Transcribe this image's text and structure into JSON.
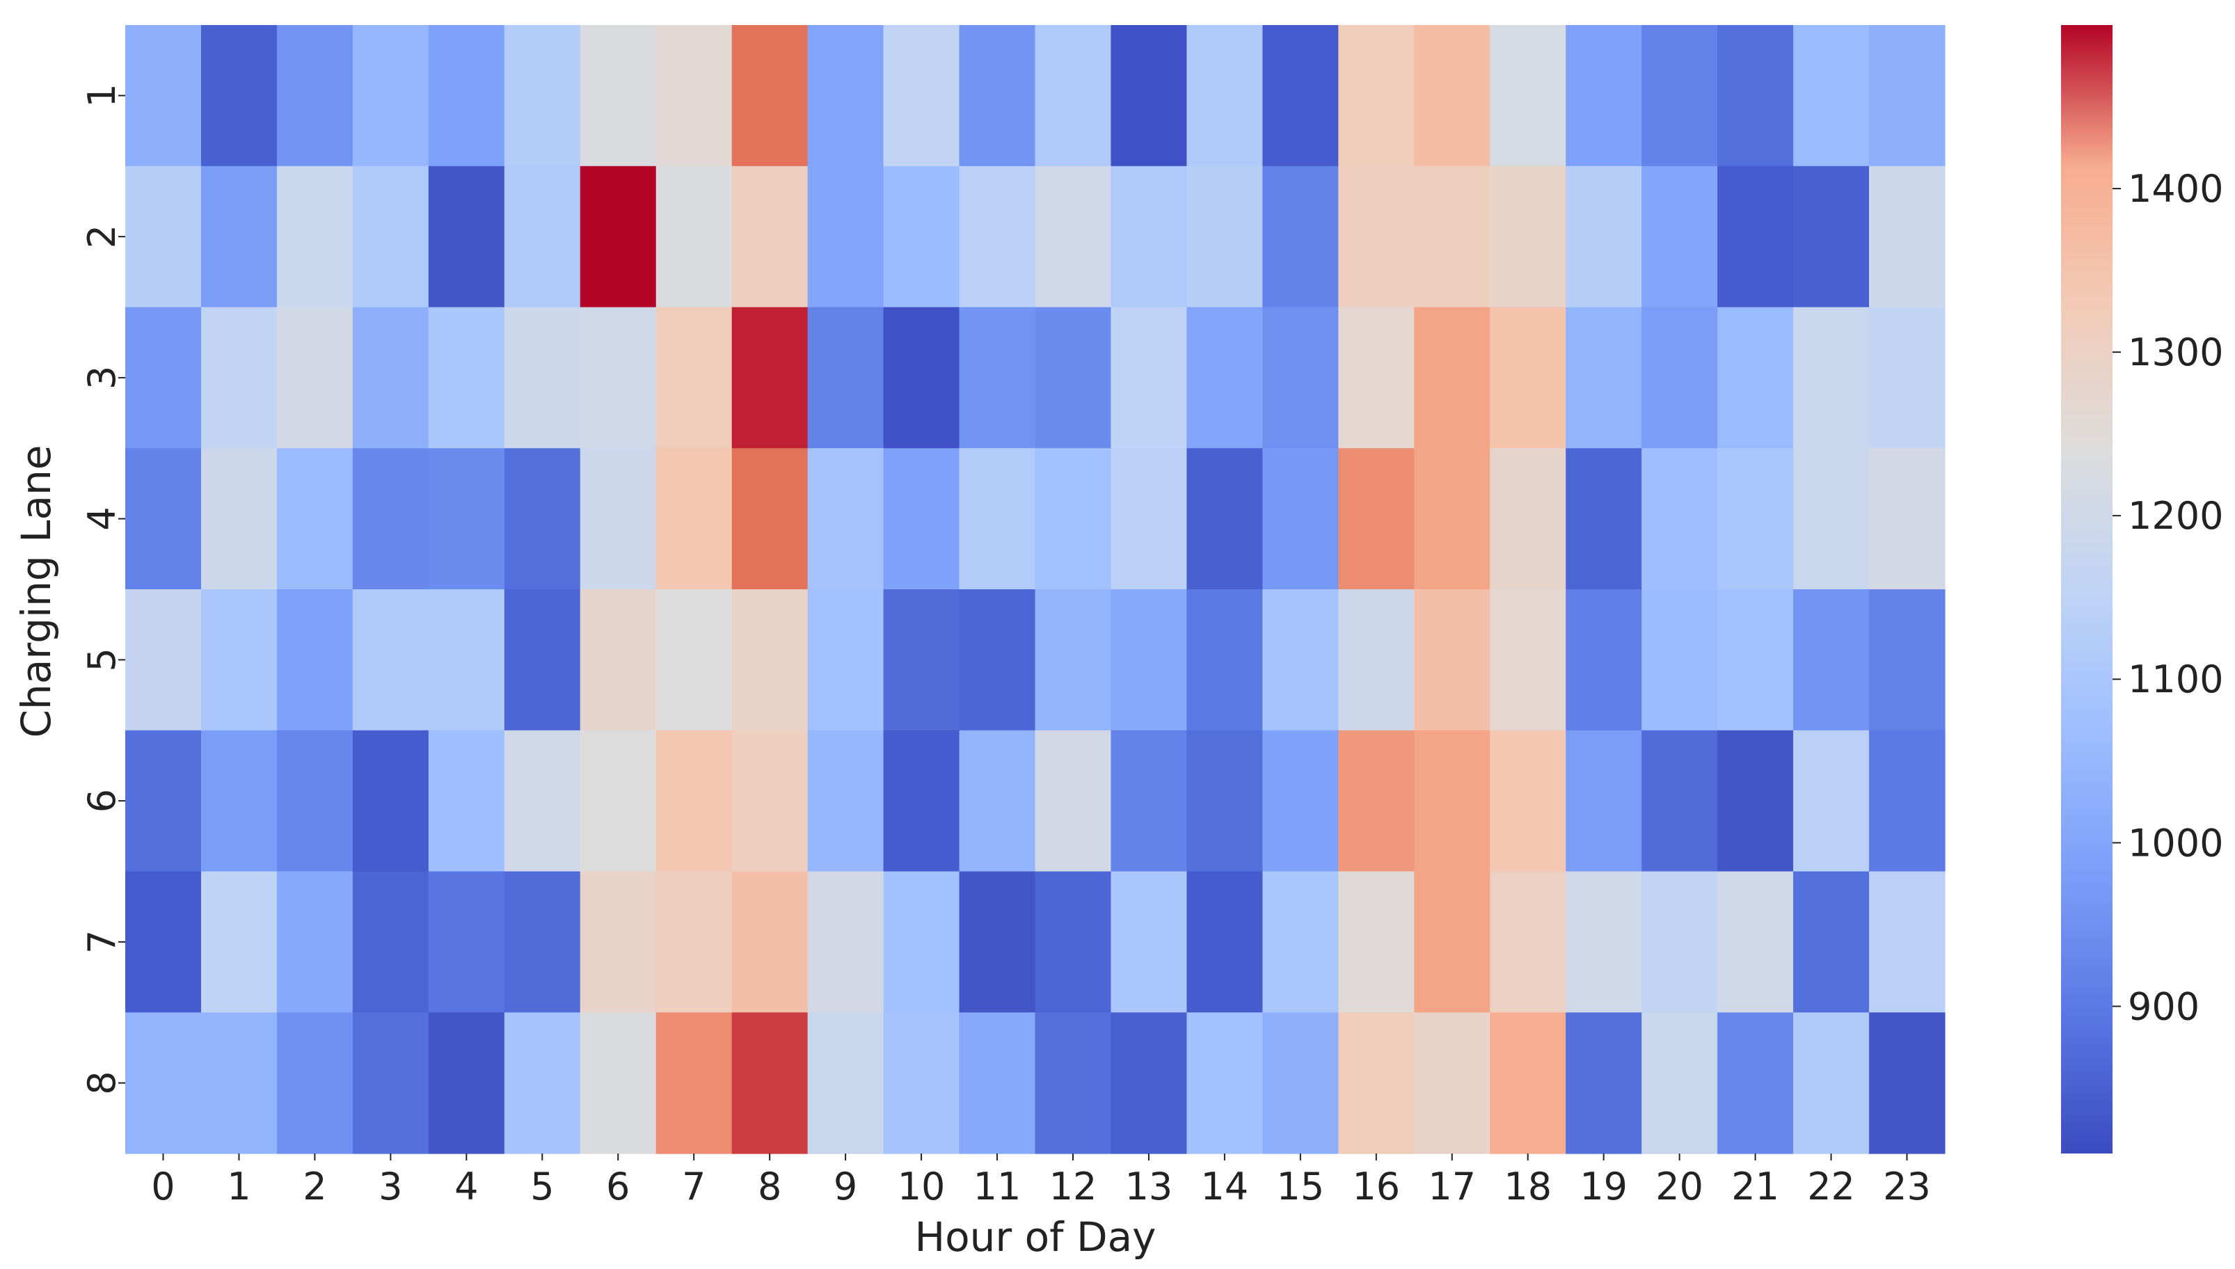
{
  "chart_data": {
    "type": "heatmap",
    "title": "",
    "xlabel": "Hour of Day",
    "ylabel": "Charging Lane",
    "x_categories": [
      "0",
      "1",
      "2",
      "3",
      "4",
      "5",
      "6",
      "7",
      "8",
      "9",
      "10",
      "11",
      "12",
      "13",
      "14",
      "15",
      "16",
      "17",
      "18",
      "19",
      "20",
      "21",
      "22",
      "23"
    ],
    "y_categories": [
      "1",
      "2",
      "3",
      "4",
      "5",
      "6",
      "7",
      "8"
    ],
    "values": [
      [
        1030,
        850,
        960,
        1050,
        990,
        1120,
        1230,
        1260,
        1460,
        1000,
        1160,
        960,
        1110,
        820,
        1110,
        840,
        1320,
        1370,
        1220,
        990,
        920,
        880,
        1060,
        1030
      ],
      [
        1130,
        980,
        1180,
        1110,
        830,
        1110,
        1500,
        1230,
        1310,
        1000,
        1060,
        1140,
        1200,
        1110,
        1130,
        920,
        1310,
        1310,
        1290,
        1130,
        1000,
        840,
        850,
        1190
      ],
      [
        970,
        1160,
        1210,
        1030,
        1100,
        1190,
        1200,
        1320,
        1490,
        920,
        820,
        960,
        940,
        1150,
        1000,
        950,
        1270,
        1420,
        1350,
        1040,
        980,
        1060,
        1180,
        1160
      ],
      [
        920,
        1190,
        1060,
        930,
        940,
        880,
        1190,
        1340,
        1460,
        1090,
        990,
        1120,
        1080,
        1140,
        850,
        970,
        1440,
        1420,
        1280,
        860,
        1070,
        1100,
        1180,
        1210
      ],
      [
        1170,
        1100,
        990,
        1110,
        1110,
        860,
        1280,
        1240,
        1290,
        1080,
        870,
        860,
        1040,
        1010,
        900,
        1090,
        1190,
        1360,
        1270,
        910,
        1060,
        1080,
        960,
        920
      ],
      [
        880,
        980,
        930,
        840,
        1070,
        1200,
        1240,
        1340,
        1310,
        1050,
        840,
        1040,
        1210,
        920,
        880,
        990,
        1430,
        1420,
        1340,
        980,
        870,
        830,
        1140,
        900
      ],
      [
        840,
        1150,
        1010,
        860,
        890,
        870,
        1290,
        1310,
        1360,
        1210,
        1080,
        830,
        860,
        1100,
        840,
        1100,
        1250,
        1420,
        1300,
        1200,
        1160,
        1200,
        880,
        1140
      ],
      [
        1040,
        1040,
        950,
        880,
        830,
        1090,
        1230,
        1440,
        1480,
        1180,
        1090,
        1010,
        880,
        850,
        1080,
        1030,
        1320,
        1290,
        1410,
        880,
        1180,
        930,
        1110,
        830
      ]
    ],
    "colorbar": {
      "colormap": "coolwarm",
      "vmin": 810,
      "vmax": 1500,
      "ticks": [
        900,
        1000,
        1100,
        1200,
        1300,
        1400
      ]
    },
    "grid": false,
    "legend": "colorbar on right"
  }
}
